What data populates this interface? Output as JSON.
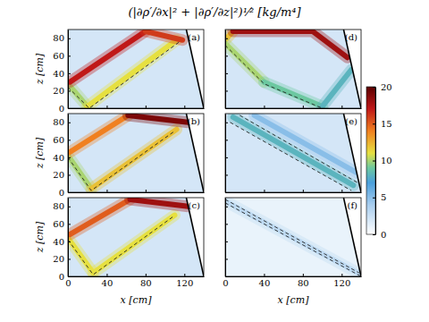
{
  "title": "(|∂ρ′/∂x|² + |∂ρ′/∂z|²)¹⁄² [kg/m⁴]",
  "colorbar": {
    "range": [
      0,
      20
    ],
    "ticks": [
      0,
      5,
      10,
      15,
      20
    ]
  },
  "chart_data": [
    {
      "type": "heatmap",
      "label": "(a)",
      "xlim": [
        0,
        140
      ],
      "ylim": [
        0,
        90
      ],
      "xticks": [
        0,
        40,
        80,
        120
      ],
      "yticks": [
        0,
        20,
        40,
        60,
        80
      ],
      "ylabel": "z [cm]",
      "tick_labels": "y",
      "background": 2,
      "slope": {
        "x": [
          122,
          140
        ],
        "z": [
          90,
          0
        ]
      },
      "beams": [
        {
          "x": [
            0,
            20
          ],
          "z": [
            28,
            2
          ],
          "value": 10
        },
        {
          "x": [
            20,
            112
          ],
          "z": [
            2,
            78
          ],
          "value": 11
        },
        {
          "x": [
            2,
            80
          ],
          "z": [
            30,
            88
          ],
          "value": 17
        },
        {
          "x": [
            80,
            118
          ],
          "z": [
            88,
            78
          ],
          "value": 16
        }
      ],
      "rays": [
        {
          "x": [
            0,
            22,
            115
          ],
          "z": [
            24,
            0,
            76
          ],
          "line_style": "dashed"
        }
      ]
    },
    {
      "type": "heatmap",
      "label": "(b)",
      "xlim": [
        0,
        140
      ],
      "ylim": [
        0,
        90
      ],
      "xticks": [
        0,
        40,
        80,
        120
      ],
      "yticks": [
        0,
        20,
        40,
        60,
        80
      ],
      "ylabel": "z [cm]",
      "tick_labels": "y",
      "background": 2,
      "slope": {
        "x": [
          122,
          140
        ],
        "z": [
          90,
          0
        ]
      },
      "beams": [
        {
          "x": [
            0,
            24
          ],
          "z": [
            42,
            4
          ],
          "value": 10
        },
        {
          "x": [
            24,
            112
          ],
          "z": [
            4,
            72
          ],
          "value": 12
        },
        {
          "x": [
            2,
            62
          ],
          "z": [
            46,
            88
          ],
          "value": 14
        },
        {
          "x": [
            62,
            124
          ],
          "z": [
            88,
            80
          ],
          "value": 19
        }
      ],
      "rays": [
        {
          "x": [
            0,
            24,
            110
          ],
          "z": [
            40,
            2,
            70
          ],
          "line_style": "dashed"
        }
      ]
    },
    {
      "type": "heatmap",
      "label": "(c)",
      "xlim": [
        0,
        140
      ],
      "ylim": [
        0,
        90
      ],
      "xticks": [
        0,
        40,
        80,
        120
      ],
      "yticks": [
        0,
        20,
        40,
        60,
        80
      ],
      "xlabel": "x [cm]",
      "ylabel": "z [cm]",
      "tick_labels": true,
      "background": 2,
      "slope": {
        "x": [
          122,
          140
        ],
        "z": [
          90,
          0
        ]
      },
      "beams": [
        {
          "x": [
            0,
            26
          ],
          "z": [
            44,
            4
          ],
          "value": 11
        },
        {
          "x": [
            26,
            110
          ],
          "z": [
            4,
            70
          ],
          "value": 11
        },
        {
          "x": [
            2,
            64
          ],
          "z": [
            48,
            88
          ],
          "value": 15
        },
        {
          "x": [
            64,
            124
          ],
          "z": [
            88,
            80
          ],
          "value": 18
        }
      ],
      "rays": [
        {
          "x": [
            0,
            26,
            108
          ],
          "z": [
            42,
            2,
            68
          ],
          "line_style": "dashed"
        }
      ]
    },
    {
      "type": "heatmap",
      "label": "(d)",
      "xlim": [
        0,
        140
      ],
      "ylim": [
        0,
        90
      ],
      "xticks": [
        0,
        40,
        80,
        120
      ],
      "yticks": [
        0,
        20,
        40,
        60,
        80
      ],
      "tick_labels": false,
      "background": 2,
      "slope": {
        "x": [
          122,
          140
        ],
        "z": [
          90,
          0
        ]
      },
      "beams": [
        {
          "x": [
            0,
            8
          ],
          "z": [
            78,
            88
          ],
          "value": 12
        },
        {
          "x": [
            8,
            90,
            126
          ],
          "z": [
            88,
            88,
            58
          ],
          "value": 18
        },
        {
          "x": [
            0,
            40
          ],
          "z": [
            74,
            30
          ],
          "value": 10
        },
        {
          "x": [
            40,
            100
          ],
          "z": [
            30,
            2
          ],
          "value": 9
        },
        {
          "x": [
            100,
            130
          ],
          "z": [
            2,
            44
          ],
          "value": 8
        }
      ],
      "rays": [
        {
          "x": [
            0,
            40,
            100
          ],
          "z": [
            72,
            28,
            0
          ],
          "line_style": "dashed"
        }
      ]
    },
    {
      "type": "heatmap",
      "label": "(e)",
      "xlim": [
        0,
        140
      ],
      "ylim": [
        0,
        90
      ],
      "xticks": [
        0,
        40,
        80,
        120
      ],
      "yticks": [
        0,
        20,
        40,
        60,
        80
      ],
      "tick_labels": false,
      "background": 2,
      "slope": {
        "x": [
          122,
          140
        ],
        "z": [
          90,
          0
        ]
      },
      "beams": [
        {
          "x": [
            8,
            132
          ],
          "z": [
            86,
            8
          ],
          "value": 8
        },
        {
          "x": [
            30,
            136
          ],
          "z": [
            88,
            22
          ],
          "value": 5
        }
      ],
      "rays": [
        {
          "x": [
            5,
            130
          ],
          "z": [
            80,
            2
          ],
          "line_style": "dashed"
        },
        {
          "x": [
            15,
            138
          ],
          "z": [
            88,
            10
          ],
          "line_style": "dashed"
        }
      ]
    },
    {
      "type": "heatmap",
      "label": "(f)",
      "xlim": [
        0,
        140
      ],
      "ylim": [
        0,
        90
      ],
      "xticks": [
        0,
        40,
        80,
        120
      ],
      "yticks": [
        0,
        20,
        40,
        60,
        80
      ],
      "xlabel": "x [cm]",
      "tick_labels": "x",
      "background": 1,
      "slope": {
        "x": [
          122,
          140
        ],
        "z": [
          90,
          0
        ]
      },
      "beams": [
        {
          "x": [
            0,
            140
          ],
          "z": [
            86,
            2
          ],
          "value": 3
        }
      ],
      "rays": [
        {
          "x": [
            0,
            140
          ],
          "z": [
            84,
            0
          ],
          "line_style": "dashed"
        },
        {
          "x": [
            0,
            138
          ],
          "z": [
            88,
            4
          ],
          "line_style": "dashed"
        }
      ]
    }
  ]
}
